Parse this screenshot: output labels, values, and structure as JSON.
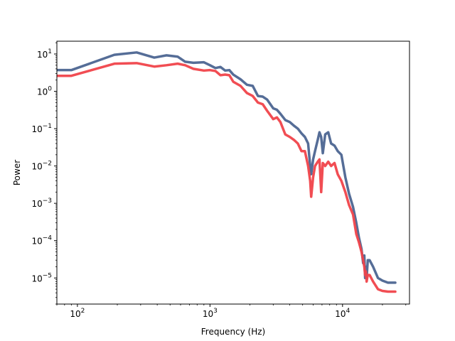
{
  "chart_data": {
    "type": "line",
    "title": "",
    "xlabel": "Frequency (Hz)",
    "ylabel": "Power",
    "xscale": "log",
    "yscale": "log",
    "xlim": [
      70,
      32000
    ],
    "ylim": [
      2e-06,
      22
    ],
    "grid": false,
    "legend": "none",
    "x_ticks": [
      {
        "value": 100,
        "base": "10",
        "exp": "2"
      },
      {
        "value": 1000,
        "base": "10",
        "exp": "3"
      },
      {
        "value": 10000,
        "base": "10",
        "exp": "4"
      }
    ],
    "y_ticks": [
      {
        "value": 1e-05,
        "base": "10",
        "exp": "−5"
      },
      {
        "value": 0.0001,
        "base": "10",
        "exp": "−4"
      },
      {
        "value": 0.001,
        "base": "10",
        "exp": "−3"
      },
      {
        "value": 0.01,
        "base": "10",
        "exp": "−2"
      },
      {
        "value": 0.1,
        "base": "10",
        "exp": "−1"
      },
      {
        "value": 1,
        "base": "10",
        "exp": "0"
      },
      {
        "value": 10,
        "base": "10",
        "exp": "1"
      }
    ],
    "series": [
      {
        "color": "#4c6591",
        "x": [
          70,
          90,
          190,
          280,
          380,
          470,
          570,
          650,
          750,
          900,
          1000,
          1100,
          1200,
          1300,
          1400,
          1500,
          1700,
          1900,
          2100,
          2300,
          2500,
          2700,
          3000,
          3200,
          3400,
          3700,
          4000,
          4300,
          4600,
          4900,
          5200,
          5500,
          5700,
          5800,
          6000,
          6200,
          6500,
          6700,
          6900,
          7100,
          7400,
          7800,
          8200,
          8700,
          9200,
          9800,
          10500,
          11200,
          12000,
          12700,
          13300,
          13900,
          14300,
          14600,
          14800,
          15000,
          15200,
          15500,
          16000,
          17000,
          18500,
          20000,
          22000,
          25000
        ],
        "y": [
          3.7,
          3.7,
          9.5,
          11,
          8,
          9.2,
          8.5,
          6.2,
          5.8,
          6,
          5,
          4.2,
          4.5,
          3.6,
          3.7,
          2.8,
          2.1,
          1.5,
          1.4,
          0.75,
          0.72,
          0.6,
          0.35,
          0.32,
          0.25,
          0.17,
          0.15,
          0.12,
          0.1,
          0.075,
          0.06,
          0.04,
          0.01,
          0.006,
          0.015,
          0.025,
          0.05,
          0.08,
          0.06,
          0.022,
          0.07,
          0.08,
          0.04,
          0.035,
          0.025,
          0.02,
          0.005,
          0.0018,
          0.0008,
          0.0003,
          0.00012,
          6e-05,
          2.5e-05,
          4e-05,
          1e-05,
          2e-05,
          1e-05,
          3e-05,
          3e-05,
          2e-05,
          1e-05,
          8.5e-06,
          7.5e-06,
          7.5e-06
        ]
      },
      {
        "color": "#f0434a",
        "x": [
          70,
          90,
          190,
          280,
          380,
          470,
          570,
          650,
          750,
          900,
          1000,
          1100,
          1200,
          1300,
          1400,
          1500,
          1700,
          1900,
          2100,
          2300,
          2500,
          2700,
          3000,
          3200,
          3400,
          3700,
          4000,
          4300,
          4600,
          4900,
          5200,
          5500,
          5700,
          5800,
          6000,
          6200,
          6500,
          6700,
          6900,
          7100,
          7400,
          7800,
          8200,
          8700,
          9200,
          9800,
          10500,
          11200,
          12000,
          12700,
          13300,
          13900,
          14300,
          14600,
          14800,
          15000,
          15200,
          15500,
          16000,
          17000,
          18500,
          20000,
          22000,
          25000
        ],
        "y": [
          2.6,
          2.6,
          5.5,
          5.7,
          4.6,
          5,
          5.5,
          5,
          4,
          3.6,
          3.7,
          3.5,
          2.7,
          2.8,
          2.7,
          1.8,
          1.4,
          0.9,
          0.75,
          0.5,
          0.45,
          0.3,
          0.18,
          0.2,
          0.15,
          0.07,
          0.06,
          0.05,
          0.04,
          0.025,
          0.025,
          0.01,
          0.004,
          0.0015,
          0.005,
          0.01,
          0.013,
          0.015,
          0.002,
          0.012,
          0.01,
          0.013,
          0.01,
          0.012,
          0.006,
          0.004,
          0.002,
          0.0009,
          0.0005,
          0.00015,
          9e-05,
          5e-05,
          3e-05,
          2e-05,
          1.2e-05,
          1.5e-05,
          8e-06,
          1.2e-05,
          1.2e-05,
          8e-06,
          5e-06,
          4.5e-06,
          4.3e-06,
          4.3e-06
        ]
      }
    ]
  }
}
